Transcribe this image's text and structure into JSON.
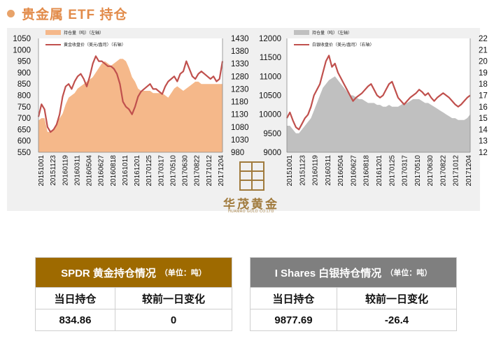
{
  "page": {
    "title": "贵金属 ETF 持仓"
  },
  "chart_data": [
    {
      "type": "area",
      "series": [
        {
          "name": "持仓量（吨）（左轴）",
          "kind": "area",
          "axis": "left",
          "color": "#f5b88a",
          "values": [
            690,
            700,
            700,
            640,
            640,
            650,
            680,
            700,
            720,
            760,
            790,
            800,
            810,
            830,
            840,
            850,
            860,
            870,
            880,
            900,
            920,
            940,
            950,
            940,
            930,
            940,
            950,
            960,
            960,
            950,
            920,
            880,
            860,
            830,
            820,
            820,
            820,
            820,
            810,
            810,
            810,
            810,
            800,
            790,
            810,
            830,
            840,
            830,
            820,
            830,
            840,
            850,
            860,
            860,
            850,
            850,
            850,
            850,
            850,
            850,
            850,
            850
          ]
        },
        {
          "name": "黄金收盘价（美元/盎司）（右轴）",
          "kind": "line",
          "axis": "right",
          "color": "#c0504d",
          "values": [
            1120,
            1170,
            1150,
            1080,
            1060,
            1070,
            1090,
            1130,
            1200,
            1240,
            1250,
            1230,
            1260,
            1280,
            1290,
            1270,
            1240,
            1280,
            1330,
            1360,
            1340,
            1340,
            1330,
            1320,
            1320,
            1310,
            1290,
            1250,
            1180,
            1160,
            1150,
            1130,
            1160,
            1200,
            1220,
            1230,
            1240,
            1250,
            1230,
            1230,
            1220,
            1210,
            1240,
            1260,
            1270,
            1280,
            1260,
            1290,
            1300,
            1340,
            1310,
            1280,
            1270,
            1290,
            1300,
            1290,
            1280,
            1270,
            1280,
            1260,
            1270,
            1340
          ]
        }
      ],
      "x_ticks": [
        "20151001",
        "20151123",
        "20160119",
        "20160311",
        "20160504",
        "20160627",
        "20160818",
        "20161011",
        "20161201",
        "20170125",
        "20170317",
        "20170510",
        "20170630",
        "20170822",
        "20171012",
        "20171204"
      ],
      "y_left": {
        "range": [
          550,
          1050
        ],
        "ticks": [
          550,
          600,
          650,
          700,
          750,
          800,
          850,
          900,
          950,
          1000,
          1050
        ]
      },
      "y_right": {
        "range": [
          980,
          1430
        ],
        "ticks": [
          980,
          1030,
          1080,
          1130,
          1180,
          1230,
          1280,
          1330,
          1380,
          1430
        ]
      }
    },
    {
      "type": "area",
      "series": [
        {
          "name": "持仓量（吨）（左轴）",
          "kind": "area",
          "axis": "left",
          "color": "#c0c0c0",
          "values": [
            9700,
            9700,
            9600,
            9500,
            9500,
            9600,
            9700,
            9800,
            9900,
            10100,
            10300,
            10500,
            10700,
            10800,
            10900,
            10950,
            11000,
            10900,
            10800,
            10700,
            10600,
            10500,
            10500,
            10450,
            10400,
            10400,
            10350,
            10300,
            10300,
            10300,
            10250,
            10250,
            10200,
            10200,
            10250,
            10200,
            10200,
            10200,
            10250,
            10300,
            10300,
            10350,
            10400,
            10400,
            10400,
            10350,
            10300,
            10300,
            10250,
            10200,
            10150,
            10100,
            10050,
            10000,
            9950,
            9900,
            9900,
            9850,
            9850,
            9850,
            9900,
            10000
          ]
        },
        {
          "name": "白银收盘价（美元/盎司）（右轴）",
          "kind": "line",
          "axis": "right",
          "color": "#c0504d",
          "values": [
            15,
            15.5,
            14.8,
            14.2,
            14,
            14.5,
            15,
            15.3,
            16,
            17,
            17.5,
            18,
            19,
            20,
            20.5,
            19.5,
            19.8,
            19,
            18.5,
            18,
            17.5,
            17,
            16.5,
            16.8,
            17,
            17.2,
            17.5,
            17.8,
            18,
            17.5,
            17,
            16.8,
            17,
            17.5,
            18,
            18.2,
            17.5,
            16.8,
            16.5,
            16.2,
            16.5,
            16.8,
            17,
            17.2,
            17.5,
            17.3,
            17,
            17.2,
            16.8,
            16.5,
            16.8,
            17,
            17.2,
            17,
            16.8,
            16.5,
            16.2,
            16,
            16.2,
            16.5,
            16.8,
            17
          ]
        }
      ],
      "x_ticks": [
        "20151001",
        "20151123",
        "20160119",
        "20160311",
        "20160504",
        "20160627",
        "20160818",
        "20161201",
        "20170125",
        "20170317",
        "20170510",
        "20170630",
        "20170822",
        "20171012",
        "20171204"
      ],
      "y_left": {
        "range": [
          9000,
          12000
        ],
        "ticks": [
          9000,
          9500,
          10000,
          10500,
          11000,
          11500,
          12000
        ]
      },
      "y_right": {
        "range": [
          12,
          22
        ],
        "ticks": [
          12,
          13,
          14,
          15,
          16,
          17,
          18,
          19,
          20,
          21,
          22
        ]
      }
    }
  ],
  "logo": {
    "name": "华茂黄金",
    "sub": "HUAMAO GOLD CO.LTD"
  },
  "tables": [
    {
      "header": "SPDR 黄金持仓情况",
      "unit": "（单位：吨）",
      "header_color": "#9e6a00",
      "col1": "当日持仓",
      "col2": "较前一日变化",
      "value1": "834.86",
      "value2": "0"
    },
    {
      "header": "I Shares 白银持仓情况",
      "unit": "（单位：吨）",
      "header_color": "#7f7f7f",
      "col1": "当日持仓",
      "col2": "较前一日变化",
      "value1": "9877.69",
      "value2": "-26.4"
    }
  ]
}
